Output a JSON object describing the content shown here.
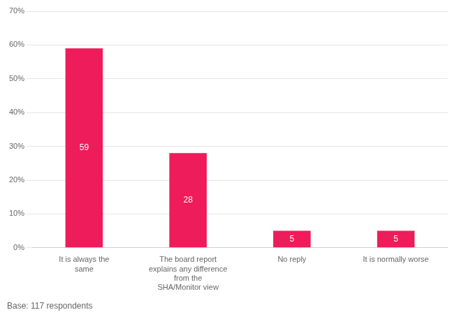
{
  "chart_data": {
    "type": "bar",
    "categories": [
      "It is always the\nsame",
      "The board report\nexplains any difference\nfrom the\nSHA/Monitor view",
      "No reply",
      "It is normally worse"
    ],
    "values": [
      59,
      28,
      5,
      5
    ],
    "color": "#EE1C5A",
    "data_labels": true,
    "ylim": [
      0,
      70
    ],
    "yticks": [
      {
        "value": 0,
        "label": "0%"
      },
      {
        "value": 10,
        "label": "10%"
      },
      {
        "value": 20,
        "label": "20%"
      },
      {
        "value": 30,
        "label": "30%"
      },
      {
        "value": 40,
        "label": "40%"
      },
      {
        "value": 50,
        "label": "50%"
      },
      {
        "value": 60,
        "label": "60%"
      },
      {
        "value": 70,
        "label": "70%"
      }
    ],
    "grid": true,
    "annotations": [
      "Base: 117 respondents"
    ]
  }
}
